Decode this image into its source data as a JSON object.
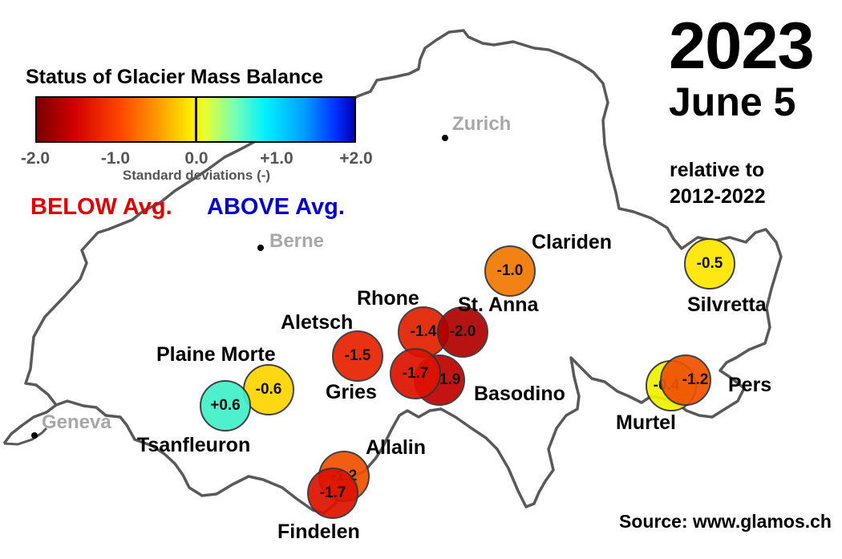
{
  "legend": {
    "title": "Status of Glacier Mass Balance",
    "ticks": [
      "-2.0",
      "-1.0",
      "0.0",
      "+1.0",
      "+2.0"
    ],
    "axis_title": "Standard deviations (-)",
    "below_label": "BELOW Avg.",
    "above_label": "ABOVE Avg."
  },
  "header": {
    "year": "2023",
    "date": "June  5",
    "relative_line1": "relative to",
    "relative_line2": "2012-2022"
  },
  "source": "Source: www.glamos.ch",
  "cities": [
    {
      "name": "Zurich"
    },
    {
      "name": "Berne"
    },
    {
      "name": "Geneva"
    }
  ],
  "glaciers": [
    {
      "name": "Clariden",
      "value": "-1.0",
      "color": "#f07800"
    },
    {
      "name": "Silvretta",
      "value": "-0.5",
      "color": "#ffe600"
    },
    {
      "name": "Rhone",
      "value": "-1.4",
      "color": "#e02000"
    },
    {
      "name": "St. Anna",
      "value": "-2.0",
      "color": "#b00000"
    },
    {
      "name": "Aletsch",
      "value": "-1.5",
      "color": "#e82000"
    },
    {
      "name": "Gries",
      "value": "-1.7",
      "color": "#dd1200"
    },
    {
      "name": "Basodino",
      "value": "-1.9",
      "color": "#c00000"
    },
    {
      "name": "Plaine Morte",
      "value": "-0.6",
      "color": "#ffd400"
    },
    {
      "name": "Tsanfleuron",
      "value": "+0.6",
      "color": "#40f0c8"
    },
    {
      "name": "Murtel",
      "value": "-0.4",
      "color": "#f0f000"
    },
    {
      "name": "Pers",
      "value": "-1.2",
      "color": "#f05000"
    },
    {
      "name": "Allalin",
      "value": "-1.2",
      "color": "#f05000"
    },
    {
      "name": "Findelen",
      "value": "-1.7",
      "color": "#dd1200"
    }
  ]
}
